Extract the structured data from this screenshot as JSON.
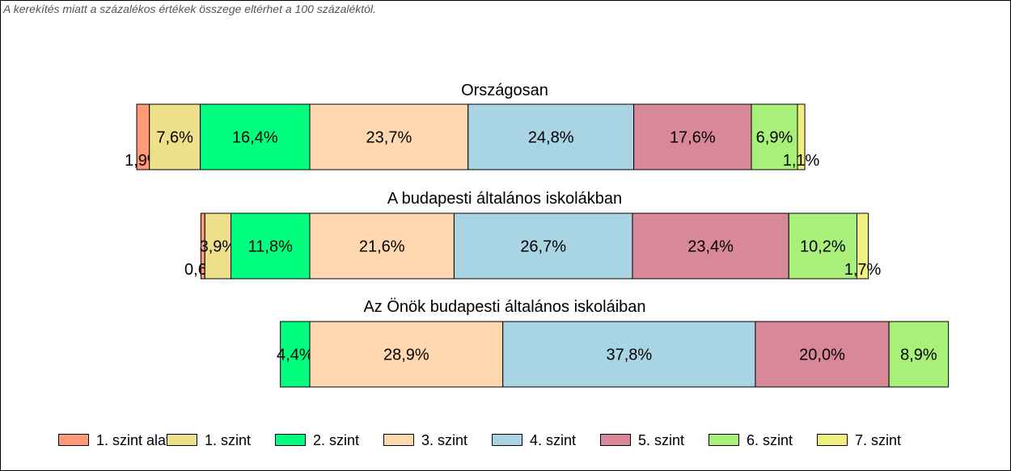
{
  "note": "A kerekítés miatt a  százalékos értékek összege eltérhet a 100 százaléktól.",
  "colors": [
    "#FF9977",
    "#EEE08A",
    "#00FF7F",
    "#FFD8B0",
    "#A8D4E4",
    "#D88898",
    "#A8F07A",
    "#F0F080"
  ],
  "chart_data": {
    "type": "bar",
    "orientation": "horizontal-stacked",
    "legend_position": "bottom",
    "categories": [
      "1. szint alatti",
      "1. szint",
      "2. szint",
      "3. szint",
      "4. szint",
      "5. szint",
      "6. szint",
      "7. szint"
    ],
    "groups": [
      {
        "title": "Országosan",
        "values": [
          1.9,
          7.6,
          16.4,
          23.7,
          24.8,
          17.6,
          6.9,
          1.1
        ],
        "labels": [
          "1,9%",
          "7,6%",
          "16,4%",
          "23,7%",
          "24,8%",
          "17,6%",
          "6,9%",
          "1,1%"
        ]
      },
      {
        "title": "A budapesti általános iskolákban",
        "values": [
          0.6,
          3.9,
          11.8,
          21.6,
          26.7,
          23.4,
          10.2,
          1.7
        ],
        "labels": [
          "0,6%",
          "3,9%",
          "11,8%",
          "21,6%",
          "26,7%",
          "23,4%",
          "10,2%",
          "1,7%"
        ]
      },
      {
        "title": "Az Önök budapesti általános iskoláiban",
        "values": [
          0,
          0,
          4.4,
          28.9,
          37.8,
          20.0,
          8.9,
          0
        ],
        "labels": [
          "",
          "",
          "4,4%",
          "28,9%",
          "37,8%",
          "20,0%",
          "8,9%",
          ""
        ]
      }
    ]
  }
}
